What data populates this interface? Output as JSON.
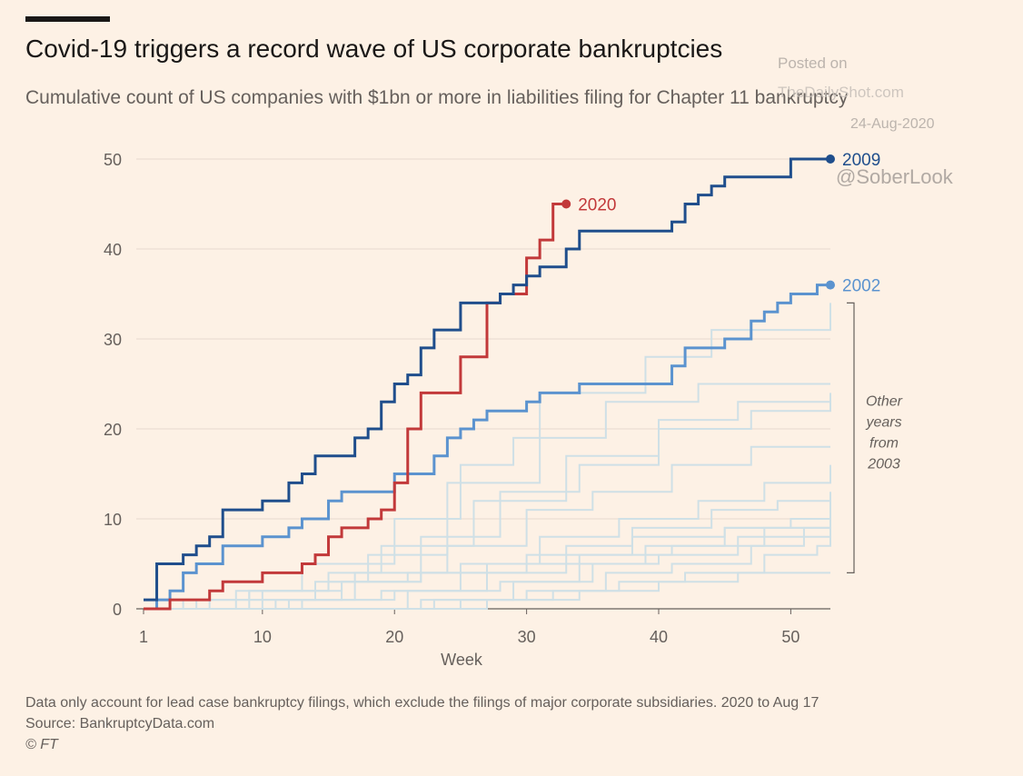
{
  "header": {
    "title": "Covid-19 triggers a record wave of US corporate bankruptcies",
    "subtitle": "Cumulative count of US companies with $1bn or more in liabilities filing for Chapter 11 bankruptcy"
  },
  "watermark": {
    "line1": "Posted on",
    "line2": "TheDailyShot.com",
    "line3": "24-Aug-2020",
    "line4": "@SoberLook"
  },
  "footer": {
    "note": "Data only account for lead case bankruptcy filings, which exclude the filings of major corporate subsidiaries. 2020 to Aug 17",
    "source": "Source: BankruptcyData.com",
    "copyright": "© FT"
  },
  "chart_data": {
    "type": "line",
    "step": true,
    "xlabel": "Week",
    "ylabel": "",
    "xlim": [
      1,
      53
    ],
    "ylim": [
      0,
      50
    ],
    "xticks": [
      1,
      10,
      20,
      30,
      40,
      50
    ],
    "yticks": [
      0,
      10,
      20,
      30,
      40,
      50
    ],
    "grid": "horizontal",
    "bracket_label": "Other years from 2003",
    "colors": {
      "2009": "#1f4e8c",
      "2020": "#c2393a",
      "2002": "#5b93cf",
      "other": "#cfe0e6"
    },
    "series": [
      {
        "name": "2009",
        "highlight": true,
        "x": [
          1,
          2,
          3,
          4,
          5,
          6,
          7,
          8,
          9,
          10,
          11,
          12,
          13,
          14,
          15,
          16,
          17,
          18,
          19,
          20,
          21,
          22,
          23,
          24,
          25,
          26,
          27,
          28,
          29,
          30,
          31,
          32,
          33,
          34,
          35,
          36,
          37,
          38,
          39,
          40,
          41,
          42,
          43,
          44,
          45,
          46,
          47,
          48,
          49,
          50,
          51,
          52,
          53
        ],
        "values": [
          1,
          5,
          5,
          6,
          7,
          8,
          11,
          11,
          11,
          12,
          12,
          14,
          15,
          17,
          17,
          17,
          19,
          20,
          23,
          25,
          26,
          29,
          31,
          31,
          34,
          34,
          34,
          35,
          36,
          37,
          38,
          38,
          40,
          42,
          42,
          42,
          42,
          42,
          42,
          42,
          43,
          45,
          46,
          47,
          48,
          48,
          48,
          48,
          48,
          50,
          50,
          50,
          50
        ]
      },
      {
        "name": "2020",
        "highlight": true,
        "x": [
          1,
          2,
          3,
          4,
          5,
          6,
          7,
          8,
          9,
          10,
          11,
          12,
          13,
          14,
          15,
          16,
          17,
          18,
          19,
          20,
          21,
          22,
          23,
          24,
          25,
          26,
          27,
          28,
          29,
          30,
          31,
          32,
          33
        ],
        "values": [
          0,
          0,
          1,
          1,
          1,
          2,
          3,
          3,
          3,
          4,
          4,
          4,
          5,
          6,
          8,
          9,
          9,
          10,
          11,
          14,
          20,
          24,
          24,
          24,
          28,
          28,
          34,
          35,
          35,
          39,
          41,
          45,
          45
        ]
      },
      {
        "name": "2002",
        "highlight": true,
        "x": [
          1,
          2,
          3,
          4,
          5,
          6,
          7,
          8,
          9,
          10,
          11,
          12,
          13,
          14,
          15,
          16,
          17,
          18,
          19,
          20,
          21,
          22,
          23,
          24,
          25,
          26,
          27,
          28,
          29,
          30,
          31,
          32,
          33,
          34,
          35,
          36,
          37,
          38,
          39,
          40,
          41,
          42,
          43,
          44,
          45,
          46,
          47,
          48,
          49,
          50,
          51,
          52,
          53
        ],
        "values": [
          0,
          1,
          2,
          4,
          5,
          5,
          7,
          7,
          7,
          8,
          8,
          9,
          10,
          10,
          12,
          13,
          13,
          13,
          13,
          15,
          15,
          15,
          17,
          19,
          20,
          21,
          22,
          22,
          22,
          23,
          24,
          24,
          24,
          25,
          25,
          25,
          25,
          25,
          25,
          25,
          27,
          29,
          29,
          29,
          30,
          30,
          32,
          33,
          34,
          35,
          35,
          36,
          36
        ]
      },
      {
        "x": [
          1,
          6,
          14,
          18,
          24,
          31,
          39,
          44,
          53
        ],
        "values": [
          0,
          1,
          3,
          6,
          14,
          24,
          28,
          31,
          34
        ]
      },
      {
        "x": [
          1,
          8,
          13,
          20,
          25,
          29,
          36,
          43,
          53
        ],
        "values": [
          0,
          2,
          5,
          10,
          16,
          19,
          23,
          25,
          25
        ]
      },
      {
        "x": [
          1,
          9,
          15,
          19,
          26,
          33,
          40,
          46,
          53
        ],
        "values": [
          0,
          2,
          4,
          7,
          12,
          17,
          21,
          23,
          24
        ]
      },
      {
        "x": [
          1,
          10,
          16,
          22,
          28,
          34,
          40,
          47,
          53
        ],
        "values": [
          0,
          1,
          3,
          8,
          13,
          16,
          20,
          22,
          23
        ]
      },
      {
        "x": [
          1,
          11,
          17,
          24,
          30,
          35,
          41,
          47,
          53
        ],
        "values": [
          0,
          1,
          4,
          7,
          11,
          13,
          16,
          18,
          18
        ]
      },
      {
        "x": [
          1,
          12,
          19,
          25,
          31,
          37,
          43,
          48,
          53
        ],
        "values": [
          0,
          1,
          2,
          5,
          8,
          10,
          12,
          14,
          16
        ]
      },
      {
        "x": [
          1,
          13,
          20,
          27,
          33,
          38,
          44,
          49,
          53
        ],
        "values": [
          0,
          1,
          2,
          4,
          7,
          9,
          11,
          12,
          13
        ]
      },
      {
        "x": [
          1,
          14,
          21,
          28,
          34,
          39,
          45,
          50,
          53
        ],
        "values": [
          0,
          0,
          2,
          3,
          5,
          7,
          9,
          10,
          11
        ]
      },
      {
        "x": [
          1,
          15,
          22,
          29,
          35,
          40,
          46,
          51,
          53
        ],
        "values": [
          0,
          0,
          1,
          3,
          5,
          6,
          8,
          9,
          10
        ]
      },
      {
        "x": [
          1,
          16,
          23,
          30,
          36,
          41,
          47,
          51,
          53
        ],
        "values": [
          0,
          0,
          1,
          2,
          4,
          5,
          7,
          8,
          9
        ]
      },
      {
        "x": [
          1,
          18,
          25,
          32,
          37,
          42,
          48,
          52,
          53
        ],
        "values": [
          0,
          0,
          1,
          2,
          3,
          4,
          6,
          7,
          8
        ]
      },
      {
        "x": [
          1,
          20,
          27,
          34,
          40,
          46,
          53
        ],
        "values": [
          0,
          0,
          1,
          2,
          3,
          4,
          4
        ]
      },
      {
        "x": [
          1,
          4,
          9,
          15,
          21,
          27,
          34,
          41,
          48,
          53
        ],
        "values": [
          0,
          1,
          2,
          3,
          4,
          5,
          6,
          7,
          9,
          12
        ]
      },
      {
        "x": [
          1,
          5,
          10,
          16,
          22,
          30,
          38,
          45,
          53
        ],
        "values": [
          0,
          1,
          2,
          3,
          4,
          6,
          8,
          9,
          10
        ]
      }
    ]
  }
}
